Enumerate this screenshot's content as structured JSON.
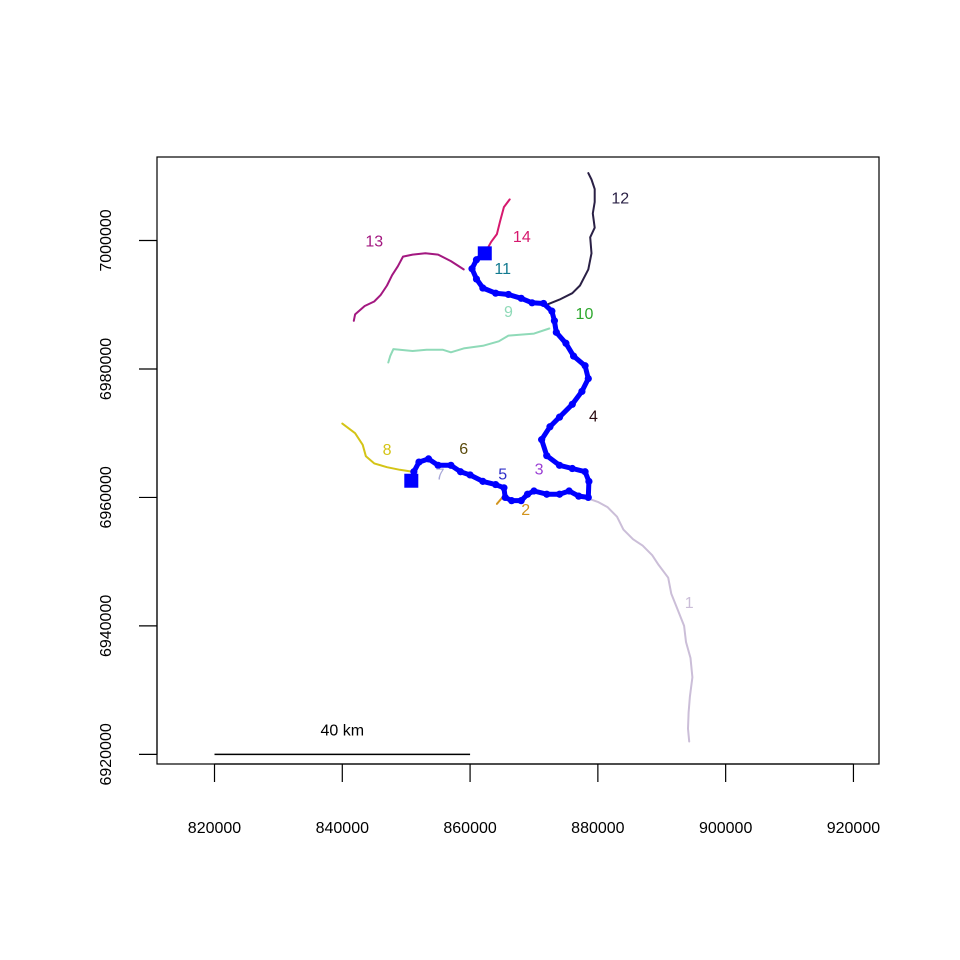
{
  "chart_data": {
    "type": "line",
    "title": "",
    "xlabel": "",
    "ylabel": "",
    "xlim": [
      811000,
      924000
    ],
    "ylim": [
      6918500,
      7013000
    ],
    "x_ticks": [
      {
        "value": 820000,
        "label": "820000"
      },
      {
        "value": 840000,
        "label": "840000"
      },
      {
        "value": 860000,
        "label": "860000"
      },
      {
        "value": 880000,
        "label": "880000"
      },
      {
        "value": 900000,
        "label": "900000"
      },
      {
        "value": 920000,
        "label": "920000"
      }
    ],
    "y_ticks": [
      {
        "value": 6920000,
        "label": "6920000"
      },
      {
        "value": 6940000,
        "label": "6940000"
      },
      {
        "value": 6960000,
        "label": "6960000"
      },
      {
        "value": 6980000,
        "label": "6980000"
      },
      {
        "value": 7000000,
        "label": "7000000"
      }
    ],
    "scale_bar": {
      "x_start": 820000,
      "x_end": 860000,
      "y": 6920000,
      "label": "40 km"
    },
    "series": [
      {
        "name": "1",
        "color": "#cbbed8",
        "label_pos": [
          894300,
          6943500
        ],
        "points": [
          [
            878000,
            6960000
          ],
          [
            880000,
            6959300
          ],
          [
            881500,
            6958500
          ],
          [
            883000,
            6957000
          ],
          [
            884000,
            6955000
          ],
          [
            885500,
            6953500
          ],
          [
            887000,
            6952500
          ],
          [
            888500,
            6951000
          ],
          [
            889500,
            6949500
          ],
          [
            891000,
            6947500
          ],
          [
            891500,
            6945000
          ],
          [
            892500,
            6942500
          ],
          [
            893500,
            6940000
          ],
          [
            893800,
            6937500
          ],
          [
            894500,
            6935000
          ],
          [
            894800,
            6932000
          ],
          [
            894400,
            6929000
          ],
          [
            894200,
            6926500
          ],
          [
            894100,
            6924000
          ],
          [
            894300,
            6922000
          ]
        ]
      },
      {
        "name": "2",
        "color": "#d2941d",
        "label_pos": [
          868700,
          6958000
        ],
        "points": [
          [
            865500,
            6960500
          ],
          [
            864800,
            6959700
          ],
          [
            864200,
            6959000
          ]
        ]
      },
      {
        "name": "3",
        "color": "#9a3fd4",
        "label_pos": [
          870800,
          6964300
        ],
        "points": []
      },
      {
        "name": "4",
        "color": "#2a0a10",
        "label_pos": [
          879300,
          6972500
        ],
        "points": []
      },
      {
        "name": "5",
        "color": "#2f2fc8",
        "label_pos": [
          865100,
          6963500
        ],
        "points": []
      },
      {
        "name": "6",
        "color": "#5a4a0c",
        "label_pos": [
          859000,
          6967500
        ],
        "points": []
      },
      {
        "name": "7",
        "color": "#a8a8d8",
        "label_pos": [
          855300,
          6963500
        ],
        "points": []
      },
      {
        "name": "8",
        "color": "#d4c416",
        "label_pos": [
          847000,
          6967300
        ],
        "points": [
          [
            851000,
            6964000
          ],
          [
            849000,
            6964300
          ],
          [
            847000,
            6964700
          ],
          [
            845000,
            6965300
          ],
          [
            843700,
            6966400
          ],
          [
            843200,
            6968200
          ],
          [
            842000,
            6970000
          ],
          [
            840000,
            6971500
          ]
        ]
      },
      {
        "name": "9",
        "color": "#8fdab8",
        "label_pos": [
          866000,
          6988800
        ],
        "points": [
          [
            872400,
            6986300
          ],
          [
            870000,
            6985500
          ],
          [
            867500,
            6985300
          ],
          [
            866000,
            6985200
          ],
          [
            864500,
            6984300
          ],
          [
            862000,
            6983600
          ],
          [
            859000,
            6983200
          ],
          [
            857000,
            6982600
          ],
          [
            855700,
            6983000
          ],
          [
            853200,
            6983000
          ],
          [
            851000,
            6982800
          ],
          [
            848000,
            6983100
          ],
          [
            847500,
            6982000
          ],
          [
            847200,
            6981000
          ]
        ]
      },
      {
        "name": "10",
        "color": "#2ea82e",
        "label_pos": [
          877900,
          6988500
        ],
        "points": []
      },
      {
        "name": "11",
        "color": "#127a90",
        "label_pos": [
          865100,
          6995500
        ],
        "points": []
      },
      {
        "name": "12",
        "color": "#2a2045",
        "label_pos": [
          883500,
          7006500
        ],
        "points": [
          [
            872000,
            6990000
          ],
          [
            874000,
            6990800
          ],
          [
            876000,
            6991800
          ],
          [
            877200,
            6993000
          ],
          [
            878500,
            6995500
          ],
          [
            879000,
            6998000
          ],
          [
            878800,
            7000500
          ],
          [
            879500,
            7002000
          ],
          [
            879200,
            7004200
          ],
          [
            879500,
            7006000
          ],
          [
            879500,
            7008000
          ],
          [
            879000,
            7009500
          ],
          [
            878500,
            7010500
          ]
        ]
      },
      {
        "name": "13",
        "color": "#a31880",
        "label_pos": [
          845000,
          6999800
        ],
        "points": [
          [
            859000,
            6995500
          ],
          [
            857000,
            6996800
          ],
          [
            855000,
            6997800
          ],
          [
            853000,
            6998000
          ],
          [
            851000,
            6997800
          ],
          [
            849500,
            6997500
          ],
          [
            848700,
            6996000
          ],
          [
            847800,
            6994600
          ],
          [
            847000,
            6993000
          ],
          [
            846000,
            6991500
          ],
          [
            845000,
            6990500
          ],
          [
            843500,
            6989800
          ],
          [
            842000,
            6988500
          ],
          [
            841800,
            6987500
          ]
        ]
      },
      {
        "name": "14",
        "color": "#d6196e",
        "label_pos": [
          868100,
          7000500
        ],
        "points": [
          [
            862300,
            6998000
          ],
          [
            863300,
            6999800
          ],
          [
            864200,
            7001000
          ],
          [
            864700,
            7003000
          ],
          [
            865300,
            7005200
          ],
          [
            866200,
            7006400
          ]
        ]
      }
    ],
    "main_path": {
      "color": "#0000ff",
      "points": [
        [
          851000,
          6962500
        ],
        [
          851200,
          6964000
        ],
        [
          852000,
          6965500
        ],
        [
          853500,
          6966000
        ],
        [
          855000,
          6965000
        ],
        [
          857000,
          6965000
        ],
        [
          858500,
          6964000
        ],
        [
          860000,
          6963500
        ],
        [
          862000,
          6962500
        ],
        [
          864000,
          6962000
        ],
        [
          865300,
          6961500
        ],
        [
          865500,
          6960000
        ],
        [
          866500,
          6959500
        ],
        [
          868000,
          6959500
        ],
        [
          869000,
          6960500
        ],
        [
          870000,
          6961000
        ],
        [
          872000,
          6960500
        ],
        [
          874000,
          6960500
        ],
        [
          875500,
          6961000
        ],
        [
          877000,
          6960200
        ],
        [
          878500,
          6960000
        ],
        [
          878600,
          6962500
        ],
        [
          878000,
          6964000
        ],
        [
          876000,
          6964500
        ],
        [
          874000,
          6965000
        ],
        [
          872000,
          6966500
        ],
        [
          871200,
          6969000
        ],
        [
          872500,
          6971000
        ],
        [
          874000,
          6972500
        ],
        [
          876000,
          6974500
        ],
        [
          877500,
          6976500
        ],
        [
          878500,
          6978500
        ],
        [
          878000,
          6980500
        ],
        [
          876200,
          6982000
        ],
        [
          875000,
          6984000
        ],
        [
          873500,
          6985700
        ],
        [
          873200,
          6987500
        ],
        [
          872800,
          6989000
        ],
        [
          871500,
          6990200
        ],
        [
          869700,
          6990300
        ],
        [
          868000,
          6991000
        ],
        [
          866000,
          6991600
        ],
        [
          864000,
          6991800
        ],
        [
          862000,
          6992600
        ],
        [
          861000,
          6994000
        ],
        [
          860300,
          6995600
        ],
        [
          861000,
          6997000
        ],
        [
          862300,
          6998000
        ]
      ]
    },
    "endpoints": [
      {
        "name": "start",
        "x": 850800,
        "y": 6962600,
        "color": "#0000ff"
      },
      {
        "name": "end",
        "x": 862300,
        "y": 6998000,
        "color": "#0000ff"
      }
    ]
  }
}
